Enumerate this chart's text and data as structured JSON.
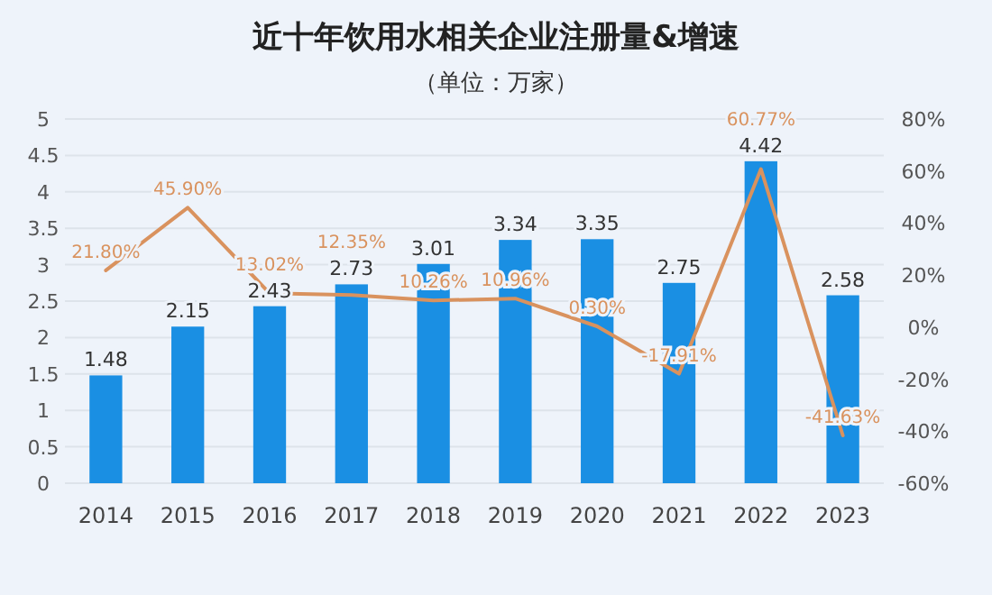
{
  "chart_data": {
    "type": "bar",
    "title": "近十年饮用水相关企业注册量&增速",
    "subtitle": "（单位：万家）",
    "categories": [
      "2014",
      "2015",
      "2016",
      "2017",
      "2018",
      "2019",
      "2020",
      "2021",
      "2022",
      "2023"
    ],
    "series": [
      {
        "color": "#1a8fe3",
        "values": [
          1.48,
          2.15,
          2.43,
          2.73,
          3.01,
          3.34,
          3.35,
          2.75,
          4.42,
          2.58
        ],
        "value_labels": [
          "1.48",
          "2.15",
          "2.43",
          "2.73",
          "3.01",
          "3.34",
          "3.35",
          "2.75",
          "4.42",
          "2.58"
        ]
      },
      {
        "type": "line",
        "axis": "y2",
        "color": "#d9925e",
        "values": [
          21.8,
          45.9,
          13.02,
          12.35,
          10.26,
          10.96,
          0.3,
          -17.91,
          60.77,
          -41.63
        ],
        "value_labels": [
          "21.80%",
          "45.90%",
          "13.02%",
          "12.35%",
          "10.26%",
          "10.96%",
          "0.30%",
          "-17.91%",
          "60.77%",
          "-41.63%"
        ]
      }
    ],
    "ylim": [
      0,
      5
    ],
    "yticks": [
      0,
      0.5,
      1,
      1.5,
      2,
      2.5,
      3,
      3.5,
      4,
      4.5,
      5
    ],
    "y2lim": [
      -60,
      80
    ],
    "y2ticks": [
      {
        "value": -60,
        "label": "-60%"
      },
      {
        "value": -40,
        "label": "-40%"
      },
      {
        "value": -20,
        "label": "-20%"
      },
      {
        "value": 0,
        "label": "0%"
      },
      {
        "value": 20,
        "label": "20%"
      },
      {
        "value": 40,
        "label": "40%"
      },
      {
        "value": 60,
        "label": "60%"
      },
      {
        "value": 80,
        "label": "80%"
      }
    ],
    "grid": "y",
    "marker": "none",
    "line_style": "solid"
  }
}
